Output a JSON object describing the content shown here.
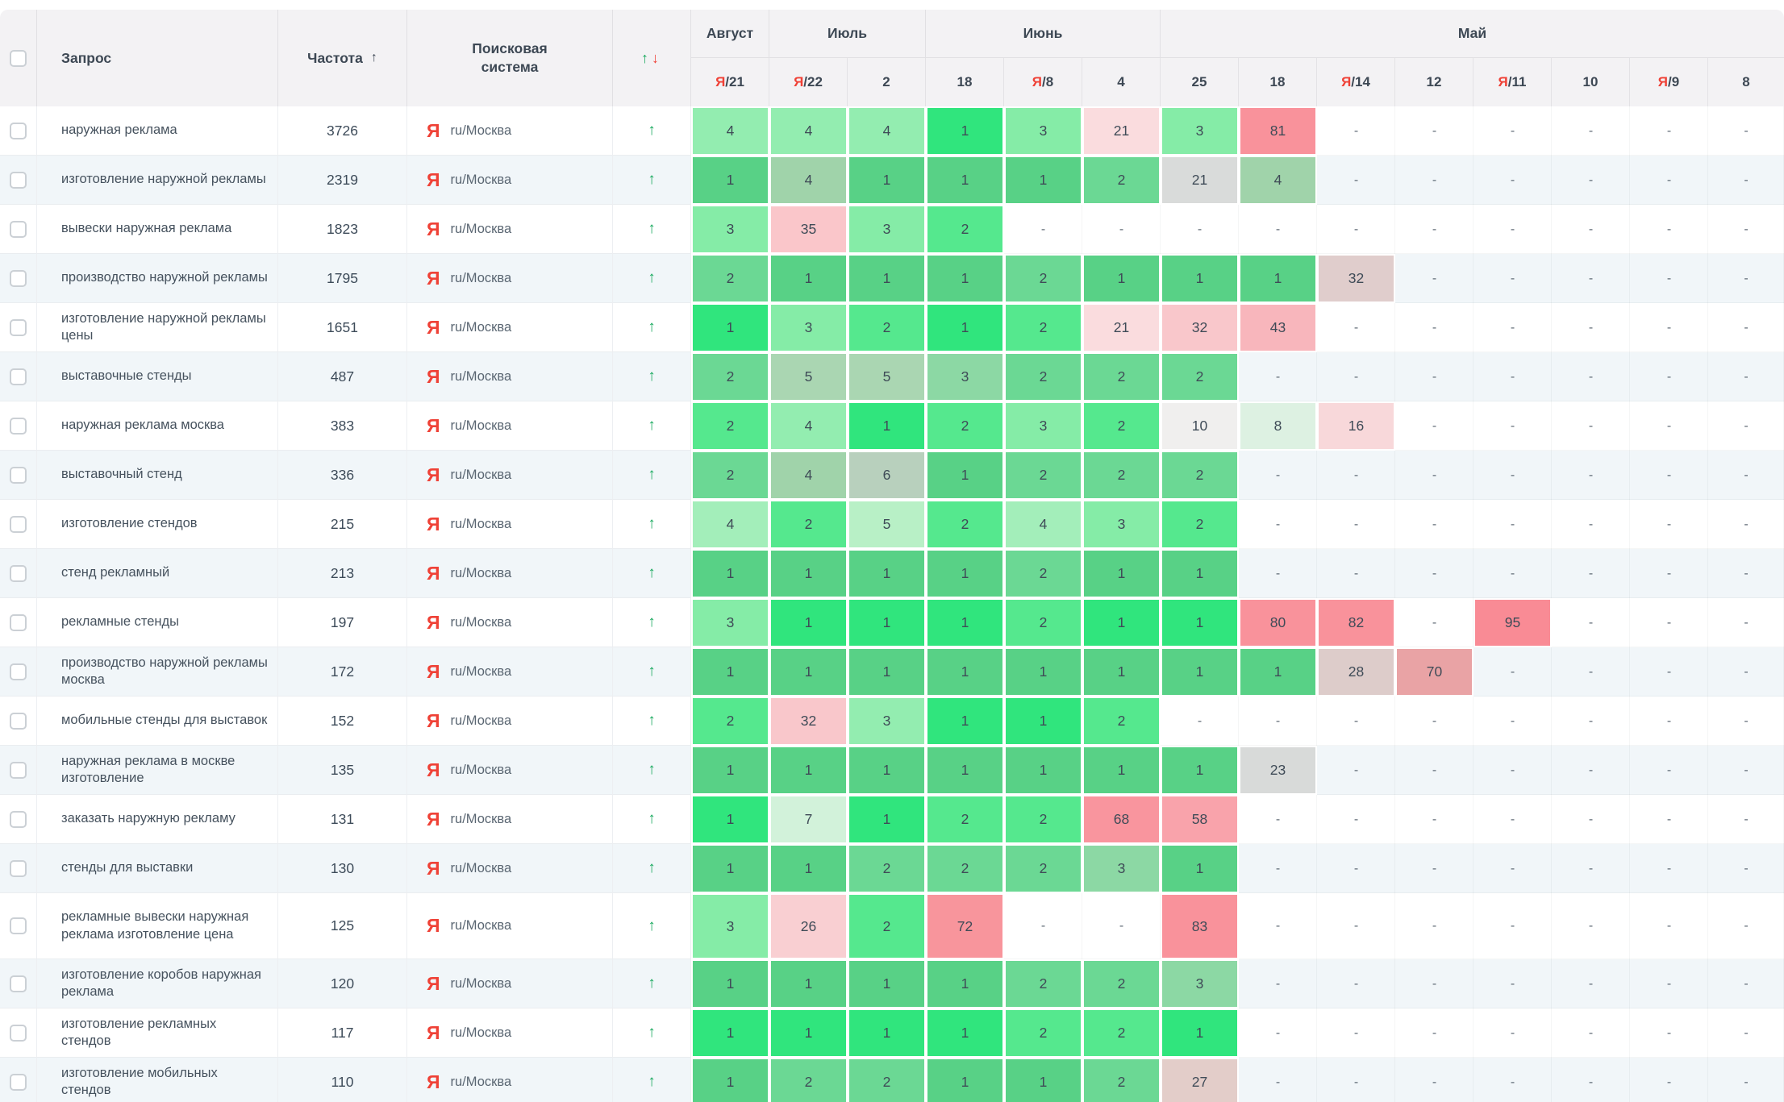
{
  "header": {
    "columns": {
      "query": "Запрос",
      "frequency": "Частота",
      "engine": "Поисковая система"
    },
    "frequency_sort_icon": "↑",
    "trend_up_icon": "↑",
    "trend_down_icon": "↓",
    "months": [
      {
        "label": "Август",
        "span": 1
      },
      {
        "label": "Июль",
        "span": 2
      },
      {
        "label": "Июнь",
        "span": 3
      },
      {
        "label": "Май",
        "span": 8
      }
    ],
    "dates": [
      {
        "ya": true,
        "day": "21"
      },
      {
        "ya": true,
        "day": "22"
      },
      {
        "ya": false,
        "day": "2"
      },
      {
        "ya": false,
        "day": "18"
      },
      {
        "ya": true,
        "day": "8"
      },
      {
        "ya": false,
        "day": "4"
      },
      {
        "ya": false,
        "day": "25"
      },
      {
        "ya": false,
        "day": "18"
      },
      {
        "ya": true,
        "day": "14"
      },
      {
        "ya": false,
        "day": "12"
      },
      {
        "ya": true,
        "day": "11"
      },
      {
        "ya": false,
        "day": "10"
      },
      {
        "ya": true,
        "day": "9"
      },
      {
        "ya": false,
        "day": "8"
      }
    ]
  },
  "engine": {
    "icon": "Я",
    "label": "ru/Москва"
  },
  "row_trend_icon": "↑",
  "colors": {
    "yandex_red": "#ef4136",
    "up_green": "#16a85c",
    "down_red": "#ef4136",
    "stripe": "#f1f6f9"
  },
  "rows": [
    {
      "query": "наружная реклама",
      "frequency": "3726",
      "cells": [
        [
          "4",
          "#93edb0"
        ],
        [
          "4",
          "#93edb0"
        ],
        [
          "4",
          "#93edb0"
        ],
        [
          "1",
          "#30e57d"
        ],
        [
          "3",
          "#85eca7"
        ],
        [
          "21",
          "#fadcde"
        ],
        [
          "3",
          "#85eca7"
        ],
        [
          "81",
          "#f9929b"
        ],
        [
          "-",
          ""
        ],
        [
          "-",
          ""
        ],
        [
          "-",
          ""
        ],
        [
          "-",
          ""
        ],
        [
          "-",
          ""
        ],
        [
          "-",
          ""
        ]
      ]
    },
    {
      "query": "изготовление наружной рекламы",
      "frequency": "2319",
      "cells": [
        [
          "1",
          "#58d186"
        ],
        [
          "4",
          "#a0d3aa"
        ],
        [
          "1",
          "#58d186"
        ],
        [
          "1",
          "#58d186"
        ],
        [
          "1",
          "#58d186"
        ],
        [
          "2",
          "#6bd894"
        ],
        [
          "21",
          "#d9dbda"
        ],
        [
          "4",
          "#a0d3aa"
        ],
        [
          "-",
          ""
        ],
        [
          "-",
          ""
        ],
        [
          "-",
          ""
        ],
        [
          "-",
          ""
        ],
        [
          "-",
          ""
        ],
        [
          "-",
          ""
        ]
      ]
    },
    {
      "query": "вывески наружная реклама",
      "frequency": "1823",
      "cells": [
        [
          "3",
          "#85eca7"
        ],
        [
          "35",
          "#fac6ca"
        ],
        [
          "3",
          "#85eca7"
        ],
        [
          "2",
          "#55e88e"
        ],
        [
          "-",
          ""
        ],
        [
          "-",
          ""
        ],
        [
          "-",
          ""
        ],
        [
          "-",
          ""
        ],
        [
          "-",
          ""
        ],
        [
          "-",
          ""
        ],
        [
          "-",
          ""
        ],
        [
          "-",
          ""
        ],
        [
          "-",
          ""
        ],
        [
          "-",
          ""
        ]
      ]
    },
    {
      "query": "производство наружной рекламы",
      "frequency": "1795",
      "cells": [
        [
          "2",
          "#6bd894"
        ],
        [
          "1",
          "#58d186"
        ],
        [
          "1",
          "#58d186"
        ],
        [
          "1",
          "#58d186"
        ],
        [
          "2",
          "#6bd894"
        ],
        [
          "1",
          "#58d186"
        ],
        [
          "1",
          "#58d186"
        ],
        [
          "1",
          "#58d186"
        ],
        [
          "32",
          "#e0cdcc"
        ],
        [
          "-",
          ""
        ],
        [
          "-",
          ""
        ],
        [
          "-",
          ""
        ],
        [
          "-",
          ""
        ],
        [
          "-",
          ""
        ]
      ]
    },
    {
      "query": "изготовление наружной рекламы цены",
      "frequency": "1651",
      "cells": [
        [
          "1",
          "#30e57d"
        ],
        [
          "3",
          "#85eca7"
        ],
        [
          "2",
          "#55e88e"
        ],
        [
          "1",
          "#30e57d"
        ],
        [
          "2",
          "#55e88e"
        ],
        [
          "21",
          "#fadcde"
        ],
        [
          "32",
          "#f9c7cb"
        ],
        [
          "43",
          "#f8b6bc"
        ],
        [
          "-",
          ""
        ],
        [
          "-",
          ""
        ],
        [
          "-",
          ""
        ],
        [
          "-",
          ""
        ],
        [
          "-",
          ""
        ],
        [
          "-",
          ""
        ]
      ]
    },
    {
      "query": "выставочные стенды",
      "frequency": "487",
      "cells": [
        [
          "2",
          "#6bd894"
        ],
        [
          "5",
          "#aad6b2"
        ],
        [
          "5",
          "#aad6b2"
        ],
        [
          "3",
          "#8cd8a4"
        ],
        [
          "2",
          "#6bd894"
        ],
        [
          "2",
          "#6bd894"
        ],
        [
          "2",
          "#6bd894"
        ],
        [
          "-",
          ""
        ],
        [
          "-",
          ""
        ],
        [
          "-",
          ""
        ],
        [
          "-",
          ""
        ],
        [
          "-",
          ""
        ],
        [
          "-",
          ""
        ],
        [
          "-",
          ""
        ]
      ]
    },
    {
      "query": "наружная реклама москва",
      "frequency": "383",
      "cells": [
        [
          "2",
          "#55e88e"
        ],
        [
          "4",
          "#93edb0"
        ],
        [
          "1",
          "#30e57d"
        ],
        [
          "2",
          "#55e88e"
        ],
        [
          "3",
          "#85eca7"
        ],
        [
          "2",
          "#55e88e"
        ],
        [
          "10",
          "#f0efee"
        ],
        [
          "8",
          "#ddf1e2"
        ],
        [
          "16",
          "#f8d8da"
        ],
        [
          "-",
          ""
        ],
        [
          "-",
          ""
        ],
        [
          "-",
          ""
        ],
        [
          "-",
          ""
        ],
        [
          "-",
          ""
        ]
      ]
    },
    {
      "query": "выставочный стенд",
      "frequency": "336",
      "cells": [
        [
          "2",
          "#6bd894"
        ],
        [
          "4",
          "#a0d3aa"
        ],
        [
          "6",
          "#b8d0bd"
        ],
        [
          "1",
          "#58d186"
        ],
        [
          "2",
          "#6bd894"
        ],
        [
          "2",
          "#6bd894"
        ],
        [
          "2",
          "#6bd894"
        ],
        [
          "-",
          ""
        ],
        [
          "-",
          ""
        ],
        [
          "-",
          ""
        ],
        [
          "-",
          ""
        ],
        [
          "-",
          ""
        ],
        [
          "-",
          ""
        ],
        [
          "-",
          ""
        ]
      ]
    },
    {
      "query": "изготовление стендов",
      "frequency": "215",
      "cells": [
        [
          "4",
          "#a3eeba"
        ],
        [
          "2",
          "#55e88e"
        ],
        [
          "5",
          "#b8f0c6"
        ],
        [
          "2",
          "#55e88e"
        ],
        [
          "4",
          "#a3eeba"
        ],
        [
          "3",
          "#85eca7"
        ],
        [
          "2",
          "#55e88e"
        ],
        [
          "-",
          ""
        ],
        [
          "-",
          ""
        ],
        [
          "-",
          ""
        ],
        [
          "-",
          ""
        ],
        [
          "-",
          ""
        ],
        [
          "-",
          ""
        ],
        [
          "-",
          ""
        ]
      ]
    },
    {
      "query": "стенд рекламный",
      "frequency": "213",
      "cells": [
        [
          "1",
          "#58d186"
        ],
        [
          "1",
          "#58d186"
        ],
        [
          "1",
          "#58d186"
        ],
        [
          "1",
          "#58d186"
        ],
        [
          "2",
          "#6bd894"
        ],
        [
          "1",
          "#58d186"
        ],
        [
          "1",
          "#58d186"
        ],
        [
          "-",
          ""
        ],
        [
          "-",
          ""
        ],
        [
          "-",
          ""
        ],
        [
          "-",
          ""
        ],
        [
          "-",
          ""
        ],
        [
          "-",
          ""
        ],
        [
          "-",
          ""
        ]
      ]
    },
    {
      "query": "рекламные стенды",
      "frequency": "197",
      "cells": [
        [
          "3",
          "#85eca7"
        ],
        [
          "1",
          "#30e57d"
        ],
        [
          "1",
          "#30e57d"
        ],
        [
          "1",
          "#30e57d"
        ],
        [
          "2",
          "#55e88e"
        ],
        [
          "1",
          "#30e57d"
        ],
        [
          "1",
          "#30e57d"
        ],
        [
          "80",
          "#f9929b"
        ],
        [
          "82",
          "#f9929b"
        ],
        [
          "-",
          ""
        ],
        [
          "95",
          "#f98b95"
        ],
        [
          "-",
          ""
        ],
        [
          "-",
          ""
        ],
        [
          "-",
          ""
        ]
      ]
    },
    {
      "query": "производство наружной рекламы москва",
      "frequency": "172",
      "cells": [
        [
          "1",
          "#58d186"
        ],
        [
          "1",
          "#58d186"
        ],
        [
          "1",
          "#58d186"
        ],
        [
          "1",
          "#58d186"
        ],
        [
          "1",
          "#58d186"
        ],
        [
          "1",
          "#58d186"
        ],
        [
          "1",
          "#58d186"
        ],
        [
          "1",
          "#58d186"
        ],
        [
          "28",
          "#ddccca"
        ],
        [
          "70",
          "#e9a3a5"
        ],
        [
          "-",
          ""
        ],
        [
          "-",
          ""
        ],
        [
          "-",
          ""
        ],
        [
          "-",
          ""
        ]
      ]
    },
    {
      "query": "мобильные стенды для выставок",
      "frequency": "152",
      "cells": [
        [
          "2",
          "#55e88e"
        ],
        [
          "32",
          "#f9c7cb"
        ],
        [
          "3",
          "#93edb0"
        ],
        [
          "1",
          "#30e57d"
        ],
        [
          "1",
          "#30e57d"
        ],
        [
          "2",
          "#55e88e"
        ],
        [
          "-",
          ""
        ],
        [
          "-",
          ""
        ],
        [
          "-",
          ""
        ],
        [
          "-",
          ""
        ],
        [
          "-",
          ""
        ],
        [
          "-",
          ""
        ],
        [
          "-",
          ""
        ],
        [
          "-",
          ""
        ]
      ]
    },
    {
      "query": "наружная реклама в москве изготовление",
      "frequency": "135",
      "cells": [
        [
          "1",
          "#58d186"
        ],
        [
          "1",
          "#58d186"
        ],
        [
          "1",
          "#58d186"
        ],
        [
          "1",
          "#58d186"
        ],
        [
          "1",
          "#58d186"
        ],
        [
          "1",
          "#58d186"
        ],
        [
          "1",
          "#58d186"
        ],
        [
          "23",
          "#d8dad9"
        ],
        [
          "-",
          ""
        ],
        [
          "-",
          ""
        ],
        [
          "-",
          ""
        ],
        [
          "-",
          ""
        ],
        [
          "-",
          ""
        ],
        [
          "-",
          ""
        ]
      ]
    },
    {
      "query": "заказать наружную рекламу",
      "frequency": "131",
      "cells": [
        [
          "1",
          "#30e57d"
        ],
        [
          "7",
          "#d2f2da"
        ],
        [
          "1",
          "#30e57d"
        ],
        [
          "2",
          "#55e88e"
        ],
        [
          "2",
          "#55e88e"
        ],
        [
          "68",
          "#f9959e"
        ],
        [
          "58",
          "#f9a3ab"
        ],
        [
          "-",
          ""
        ],
        [
          "-",
          ""
        ],
        [
          "-",
          ""
        ],
        [
          "-",
          ""
        ],
        [
          "-",
          ""
        ],
        [
          "-",
          ""
        ],
        [
          "-",
          ""
        ]
      ]
    },
    {
      "query": "стенды для выставки",
      "frequency": "130",
      "cells": [
        [
          "1",
          "#58d186"
        ],
        [
          "1",
          "#58d186"
        ],
        [
          "2",
          "#6bd894"
        ],
        [
          "2",
          "#6bd894"
        ],
        [
          "2",
          "#6bd894"
        ],
        [
          "3",
          "#8cd8a4"
        ],
        [
          "1",
          "#58d186"
        ],
        [
          "-",
          ""
        ],
        [
          "-",
          ""
        ],
        [
          "-",
          ""
        ],
        [
          "-",
          ""
        ],
        [
          "-",
          ""
        ],
        [
          "-",
          ""
        ],
        [
          "-",
          ""
        ]
      ]
    },
    {
      "query": "рекламные вывески наружная реклама изготовление цена",
      "frequency": "125",
      "tall": true,
      "cells": [
        [
          "3",
          "#85eca7"
        ],
        [
          "26",
          "#f9cfd2"
        ],
        [
          "2",
          "#55e88e"
        ],
        [
          "72",
          "#f8959c"
        ],
        [
          "-",
          ""
        ],
        [
          "-",
          ""
        ],
        [
          "83",
          "#f9929b"
        ],
        [
          "-",
          ""
        ],
        [
          "-",
          ""
        ],
        [
          "-",
          ""
        ],
        [
          "-",
          ""
        ],
        [
          "-",
          ""
        ],
        [
          "-",
          ""
        ],
        [
          "-",
          ""
        ]
      ]
    },
    {
      "query": "изготовление коробов наружная реклама",
      "frequency": "120",
      "cells": [
        [
          "1",
          "#58d186"
        ],
        [
          "1",
          "#58d186"
        ],
        [
          "1",
          "#58d186"
        ],
        [
          "1",
          "#58d186"
        ],
        [
          "2",
          "#6bd894"
        ],
        [
          "2",
          "#6bd894"
        ],
        [
          "3",
          "#8cd8a4"
        ],
        [
          "-",
          ""
        ],
        [
          "-",
          ""
        ],
        [
          "-",
          ""
        ],
        [
          "-",
          ""
        ],
        [
          "-",
          ""
        ],
        [
          "-",
          ""
        ],
        [
          "-",
          ""
        ]
      ]
    },
    {
      "query": "изготовление рекламных стендов",
      "frequency": "117",
      "cells": [
        [
          "1",
          "#30e57d"
        ],
        [
          "1",
          "#30e57d"
        ],
        [
          "1",
          "#30e57d"
        ],
        [
          "1",
          "#30e57d"
        ],
        [
          "2",
          "#55e88e"
        ],
        [
          "2",
          "#55e88e"
        ],
        [
          "1",
          "#30e57d"
        ],
        [
          "-",
          ""
        ],
        [
          "-",
          ""
        ],
        [
          "-",
          ""
        ],
        [
          "-",
          ""
        ],
        [
          "-",
          ""
        ],
        [
          "-",
          ""
        ],
        [
          "-",
          ""
        ]
      ]
    },
    {
      "query": "изготовление мобильных стендов",
      "frequency": "110",
      "cells": [
        [
          "1",
          "#58d186"
        ],
        [
          "2",
          "#6bd894"
        ],
        [
          "2",
          "#6bd894"
        ],
        [
          "1",
          "#58d186"
        ],
        [
          "1",
          "#58d186"
        ],
        [
          "2",
          "#6bd894"
        ],
        [
          "27",
          "#e3cdc9"
        ],
        [
          "-",
          ""
        ],
        [
          "-",
          ""
        ],
        [
          "-",
          ""
        ],
        [
          "-",
          ""
        ],
        [
          "-",
          ""
        ],
        [
          "-",
          ""
        ],
        [
          "-",
          ""
        ]
      ]
    }
  ]
}
